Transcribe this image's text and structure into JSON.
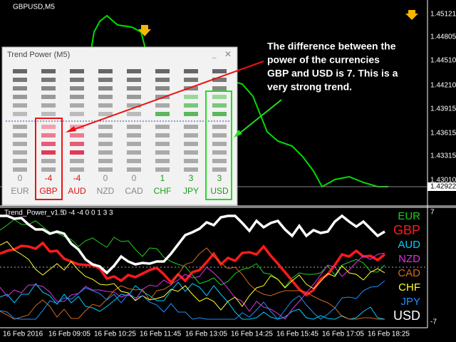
{
  "chart_window": {
    "title": "GBPUSD,M5",
    "price_labels": [
      "1.45121",
      "1.44805",
      "1.44510",
      "1.44210",
      "1.43915",
      "1.43615",
      "1.43315",
      "1.43010"
    ],
    "current_price": "1.42922"
  },
  "panel": {
    "title": "Trend Power (M5)",
    "currencies": [
      {
        "name": "EUR",
        "power": 0
      },
      {
        "name": "GBP",
        "power": -4
      },
      {
        "name": "AUD",
        "power": -4
      },
      {
        "name": "NZD",
        "power": 0
      },
      {
        "name": "CAD",
        "power": 0
      },
      {
        "name": "CHF",
        "power": 1
      },
      {
        "name": "JPY",
        "power": 3
      },
      {
        "name": "USD",
        "power": 3
      }
    ]
  },
  "annotation": {
    "lines": [
      "The difference between the",
      "power of the currencies",
      "GBP and USD is 7. This is a",
      "very strong trend."
    ]
  },
  "indicator": {
    "name": "Trend_Power_v1.5",
    "values_text": "0 -4 -4 0 0 1 3 3",
    "axis_max": "7",
    "axis_min": "-7",
    "legend": [
      {
        "name": "EUR",
        "color": "#22cc22"
      },
      {
        "name": "GBP",
        "color": "#ff1a1a"
      },
      {
        "name": "AUD",
        "color": "#00ccff"
      },
      {
        "name": "NZD",
        "color": "#dd33dd"
      },
      {
        "name": "CAD",
        "color": "#d2691e"
      },
      {
        "name": "CHF",
        "color": "#ffff33"
      },
      {
        "name": "JPY",
        "color": "#1e90ff"
      },
      {
        "name": "USD",
        "color": "#ffffff"
      }
    ]
  },
  "time_labels": [
    "16 Feb 2016",
    "16 Feb 09:05",
    "16 Feb 10:25",
    "16 Feb 11:45",
    "16 Feb 13:05",
    "16 Feb 14:25",
    "16 Feb 15:45",
    "16 Feb 17:05",
    "16 Feb 18:25"
  ]
}
